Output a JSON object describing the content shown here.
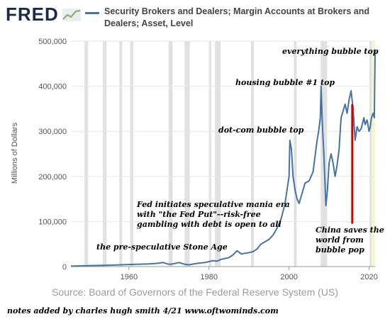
{
  "header": {
    "logo_text": "FRED",
    "legend_label": "Security Brokers and Dealers; Margin Accounts at Brokers and Dealers; Asset, Level"
  },
  "footer": {
    "source": "Source: Board of Governors of the Federal Reserve System (US)",
    "notes": "notes added by charles hugh smith 4/21   www.oftwominds.com"
  },
  "colors": {
    "series": "#4572a7",
    "recession": "#e1e1e1",
    "marker": "#d40000",
    "highlight": "#f5f5d0"
  },
  "chart_data": {
    "type": "line",
    "title": "Security Brokers and Dealers; Margin Accounts at Brokers and Dealers; Asset, Level",
    "ylabel": "Millions of Dollars",
    "xlabel": "",
    "xlim": [
      1945.5,
      2021.5
    ],
    "ylim": [
      0,
      500000
    ],
    "x_ticks": [
      1960,
      1980,
      2000,
      2020
    ],
    "y_ticks": [
      0,
      100000,
      200000,
      300000,
      400000,
      500000
    ],
    "y_tick_labels": [
      "0",
      "100,000",
      "200,000",
      "300,000",
      "400,000",
      "500,000"
    ],
    "grid": true,
    "recessions": [
      [
        1948.9,
        1949.8
      ],
      [
        1953.5,
        1954.4
      ],
      [
        1957.6,
        1958.3
      ],
      [
        1960.3,
        1961.1
      ],
      [
        1969.9,
        1970.9
      ],
      [
        1973.9,
        1975.2
      ],
      [
        1980.0,
        1980.5
      ],
      [
        1981.5,
        1982.9
      ],
      [
        1990.5,
        1991.2
      ],
      [
        2001.2,
        2001.9
      ],
      [
        2007.9,
        2009.5
      ],
      [
        2020.1,
        2020.4
      ]
    ],
    "series": [
      {
        "x": [
          1945.5,
          1950,
          1955,
          1958,
          1960,
          1962,
          1965,
          1967,
          1968.5,
          1970,
          1971,
          1972.5,
          1974,
          1975,
          1977,
          1979,
          1980,
          1981,
          1982,
          1983,
          1984,
          1985,
          1986,
          1987,
          1987.8,
          1988,
          1990,
          1991,
          1992,
          1993,
          1994,
          1995,
          1996,
          1997,
          1998,
          1999,
          2000,
          2000.2,
          2000.6,
          2001,
          2001.5,
          2002,
          2002.5,
          2003,
          2003.5,
          2004,
          2005,
          2006,
          2007,
          2007.4,
          2007.8,
          2008,
          2008.3,
          2008.7,
          2009.2,
          2009.6,
          2010,
          2010.5,
          2011,
          2011.5,
          2012,
          2012.5,
          2013,
          2014,
          2014.5,
          2015,
          2015.5,
          2016,
          2016.5,
          2017,
          2017.5,
          2018,
          2018.7,
          2019,
          2019.5,
          2020,
          2020.3,
          2020.6,
          2021,
          2021.3,
          2021.5
        ],
        "y": [
          1000,
          2000,
          3000,
          4000,
          4500,
          5000,
          6000,
          7000,
          9000,
          5000,
          6000,
          9000,
          5000,
          4000,
          7000,
          9000,
          11000,
          13000,
          12000,
          16000,
          18000,
          20000,
          26000,
          35000,
          30000,
          28000,
          31000,
          33000,
          39000,
          50000,
          55000,
          60000,
          70000,
          85000,
          105000,
          140000,
          200000,
          280000,
          260000,
          200000,
          170000,
          150000,
          140000,
          155000,
          170000,
          185000,
          190000,
          210000,
          280000,
          300000,
          330000,
          400000,
          320000,
          250000,
          135000,
          170000,
          230000,
          250000,
          230000,
          200000,
          225000,
          260000,
          330000,
          360000,
          340000,
          370000,
          390000,
          350000,
          280000,
          310000,
          300000,
          305000,
          330000,
          315000,
          325000,
          300000,
          310000,
          330000,
          340000,
          330000,
          480000
        ]
      }
    ],
    "annotations": [
      {
        "text": "everything bubble top"
      },
      {
        "text": "housing bubble #1 top"
      },
      {
        "text": "dot-com bubble top"
      },
      {
        "text": "Fed initiates speculative mania era"
      },
      {
        "text": "with \"the Fed Put\"--risk-free"
      },
      {
        "text": "gambling with debt is open to all"
      },
      {
        "text": "the pre-speculative Stone Age"
      },
      {
        "text": "China saves the"
      },
      {
        "text": "world from"
      },
      {
        "text": "bubble pop"
      }
    ]
  }
}
